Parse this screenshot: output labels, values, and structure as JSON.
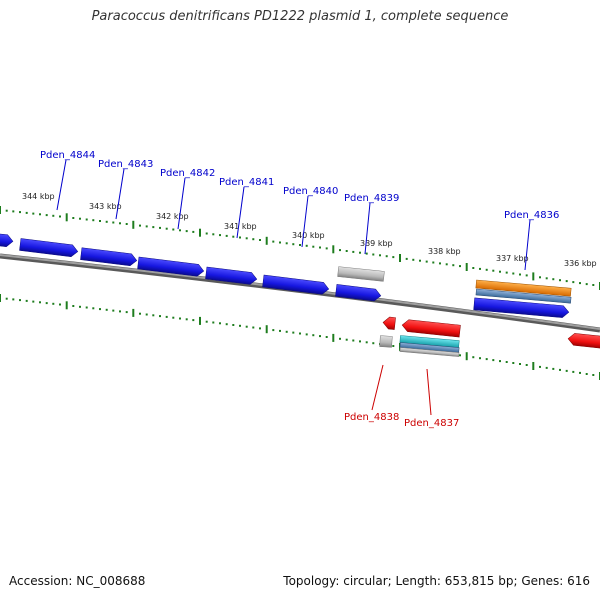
{
  "title": "Paracoccus denitrificans PD1222 plasmid 1, complete sequence",
  "footer": {
    "accession": "Accession: NC_008688",
    "summary": "Topology: circular; Length: 653,815 bp; Genes: 616"
  },
  "kbp_ticks": [
    "344 kbp",
    "343 kbp",
    "342 kbp",
    "341 kbp",
    "340 kbp",
    "339 kbp",
    "338 kbp",
    "337 kbp",
    "336 kbp"
  ],
  "gene_labels": {
    "forward": [
      "Pden_4844",
      "Pden_4843",
      "Pden_4842",
      "Pden_4841",
      "Pden_4840",
      "Pden_4839",
      "Pden_4836"
    ],
    "reverse": [
      "Pden_4838",
      "Pden_4837"
    ]
  },
  "colors": {
    "forward_gene": "#1616e0",
    "reverse_gene": "#ff1a1a",
    "rna_gene": "#b8b8b8",
    "orange_feature": "#f28c1a",
    "teal_feature": "#36c0c8",
    "backbone": "#8a8a8a",
    "tick": "#1e7d1e"
  }
}
